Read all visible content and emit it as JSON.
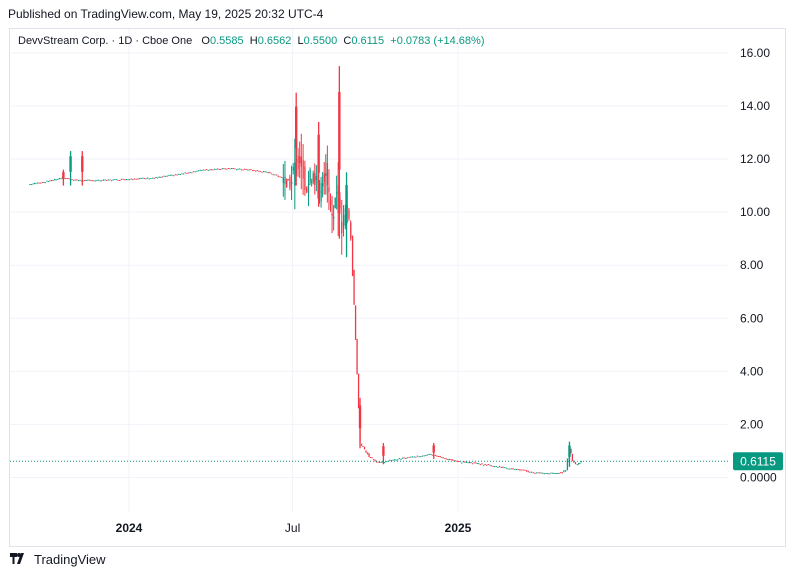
{
  "header": {
    "published": "Published on TradingView.com, May 19, 2025 20:32 UTC-4"
  },
  "legend": {
    "symbol": "DevvStream Corp. · 1D · Cboe One",
    "o_label": "O",
    "o_value": "0.5585",
    "h_label": "H",
    "h_value": "0.6562",
    "l_label": "L",
    "l_value": "0.5500",
    "c_label": "C",
    "c_value": "0.6115",
    "change": "+0.0783 (+14.68%)"
  },
  "footer": {
    "brand": "TradingView"
  },
  "colors": {
    "up": "#089981",
    "down": "#f23645",
    "grid": "#f0f3fa",
    "text": "#131722"
  },
  "chart_data": {
    "type": "candlestick",
    "title": "DevvStream Corp. · 1D · Cboe One",
    "y_ticks": [
      "16.00",
      "14.00",
      "12.00",
      "10.00",
      "8.00",
      "6.00",
      "4.00",
      "2.00",
      "0.0000"
    ],
    "x_ticks": [
      "2024",
      "Jul",
      "2025"
    ],
    "ylim": [
      -1.3,
      16.9
    ],
    "last_price_label": "0.6115",
    "last_price": 0.6115,
    "grid": true,
    "price_path": [
      [
        "2023-09-12",
        11.05
      ],
      [
        "2023-10-01",
        11.15
      ],
      [
        "2023-10-20",
        11.3
      ],
      [
        "2023-11-05",
        11.2
      ],
      [
        "2023-12-01",
        11.2
      ],
      [
        "2024-01-01",
        11.25
      ],
      [
        "2024-02-01",
        11.3
      ],
      [
        "2024-03-01",
        11.45
      ],
      [
        "2024-03-25",
        11.6
      ],
      [
        "2024-04-20",
        11.65
      ],
      [
        "2024-05-15",
        11.6
      ],
      [
        "2024-06-05",
        11.5
      ],
      [
        "2024-06-20",
        11.3
      ],
      [
        "2024-07-01",
        11.2
      ],
      [
        "2024-07-10",
        12.2
      ],
      [
        "2024-07-18",
        10.9
      ],
      [
        "2024-07-25",
        11.6
      ],
      [
        "2024-08-01",
        10.6
      ],
      [
        "2024-08-08",
        11.7
      ],
      [
        "2024-08-15",
        9.9
      ],
      [
        "2024-08-20",
        10.8
      ],
      [
        "2024-08-26",
        9.3
      ],
      [
        "2024-09-01",
        10.2
      ],
      [
        "2024-09-05",
        9.1
      ],
      [
        "2024-09-15",
        1.3
      ],
      [
        "2024-09-25",
        0.8
      ],
      [
        "2024-10-05",
        0.55
      ],
      [
        "2024-10-20",
        0.65
      ],
      [
        "2024-11-05",
        0.75
      ],
      [
        "2024-11-20",
        0.8
      ],
      [
        "2024-12-01",
        0.9
      ],
      [
        "2024-12-15",
        0.75
      ],
      [
        "2025-01-01",
        0.6
      ],
      [
        "2025-01-20",
        0.55
      ],
      [
        "2025-02-10",
        0.45
      ],
      [
        "2025-02-25",
        0.35
      ],
      [
        "2025-03-10",
        0.3
      ],
      [
        "2025-03-25",
        0.2
      ],
      [
        "2025-04-10",
        0.15
      ],
      [
        "2025-04-28",
        0.18
      ],
      [
        "2025-05-02",
        0.3
      ],
      [
        "2025-05-06",
        1.1
      ],
      [
        "2025-05-09",
        0.65
      ],
      [
        "2025-05-13",
        0.5
      ],
      [
        "2025-05-16",
        0.53
      ],
      [
        "2025-05-19",
        0.6115
      ]
    ],
    "spikes": [
      {
        "date": "2023-10-28",
        "high": 12.3,
        "low": 11.0,
        "dir": "up"
      },
      {
        "date": "2023-10-20",
        "high": 11.6,
        "low": 11.0,
        "dir": "down"
      },
      {
        "date": "2023-11-10",
        "high": 12.3,
        "low": 11.0,
        "dir": "down"
      },
      {
        "date": "2024-07-05",
        "high": 14.5,
        "low": 11.0,
        "dir": "down"
      },
      {
        "date": "2024-07-30",
        "high": 13.4,
        "low": 10.2,
        "dir": "down"
      },
      {
        "date": "2024-08-22",
        "high": 15.5,
        "low": 9.0,
        "dir": "down"
      },
      {
        "date": "2024-08-30",
        "high": 11.5,
        "low": 8.3,
        "dir": "up"
      },
      {
        "date": "2024-09-14",
        "high": 3.0,
        "low": 1.1,
        "dir": "down"
      },
      {
        "date": "2024-10-10",
        "high": 1.3,
        "low": 0.5,
        "dir": "down"
      },
      {
        "date": "2024-12-05",
        "high": 1.3,
        "low": 0.7,
        "dir": "down"
      },
      {
        "date": "2025-05-05",
        "high": 1.35,
        "low": 0.4,
        "dir": "up"
      }
    ]
  }
}
